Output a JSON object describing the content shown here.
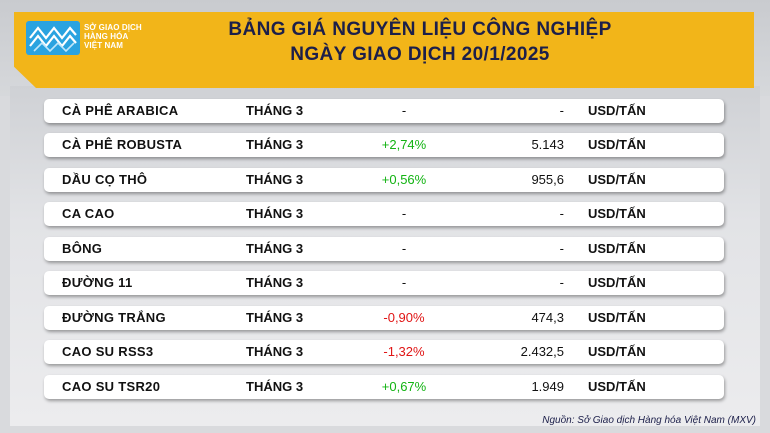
{
  "header": {
    "logo_lines": [
      "SỞ GIAO DỊCH",
      "HÀNG HÓA",
      "VIỆT NAM"
    ],
    "title_line1": "BẢNG GIÁ NGUYÊN LIỆU CÔNG NGHIỆP",
    "title_line2": "NGÀY GIAO DỊCH 20/1/2025",
    "accent_color": "#f2b519",
    "title_color": "#1c1f4a"
  },
  "rows": [
    {
      "name": "CÀ PHÊ ARABICA",
      "month": "THÁNG 3",
      "change": "-",
      "change_type": "neutral",
      "price": "-",
      "unit": "USD/TẤN"
    },
    {
      "name": "CÀ PHÊ ROBUSTA",
      "month": "THÁNG 3",
      "change": "+2,74%",
      "change_type": "positive",
      "price": "5.143",
      "unit": "USD/TẤN"
    },
    {
      "name": "DẦU CỌ THÔ",
      "month": "THÁNG 3",
      "change": "+0,56%",
      "change_type": "positive",
      "price": "955,6",
      "unit": "USD/TẤN"
    },
    {
      "name": "CA CAO",
      "month": "THÁNG 3",
      "change": "-",
      "change_type": "neutral",
      "price": "-",
      "unit": "USD/TẤN"
    },
    {
      "name": "BÔNG",
      "month": "THÁNG 3",
      "change": "-",
      "change_type": "neutral",
      "price": "-",
      "unit": "USD/TẤN"
    },
    {
      "name": "ĐƯỜNG 11",
      "month": "THÁNG 3",
      "change": "-",
      "change_type": "neutral",
      "price": "-",
      "unit": "USD/TẤN"
    },
    {
      "name": "ĐƯỜNG TRẮNG",
      "month": "THÁNG 3",
      "change": "-0,90%",
      "change_type": "negative",
      "price": "474,3",
      "unit": "USD/TẤN"
    },
    {
      "name": "CAO SU RSS3",
      "month": "THÁNG 3",
      "change": "-1,32%",
      "change_type": "negative",
      "price": "2.432,5",
      "unit": "USD/TẤN"
    },
    {
      "name": "CAO SU TSR20",
      "month": "THÁNG 3",
      "change": "+0,67%",
      "change_type": "positive",
      "price": "1.949",
      "unit": "USD/TẤN"
    }
  ],
  "colors": {
    "positive": "#12b312",
    "negative": "#e01515"
  },
  "footer": {
    "source": "Nguồn: Sở Giao dịch Hàng hóa Việt Nam (MXV)"
  }
}
